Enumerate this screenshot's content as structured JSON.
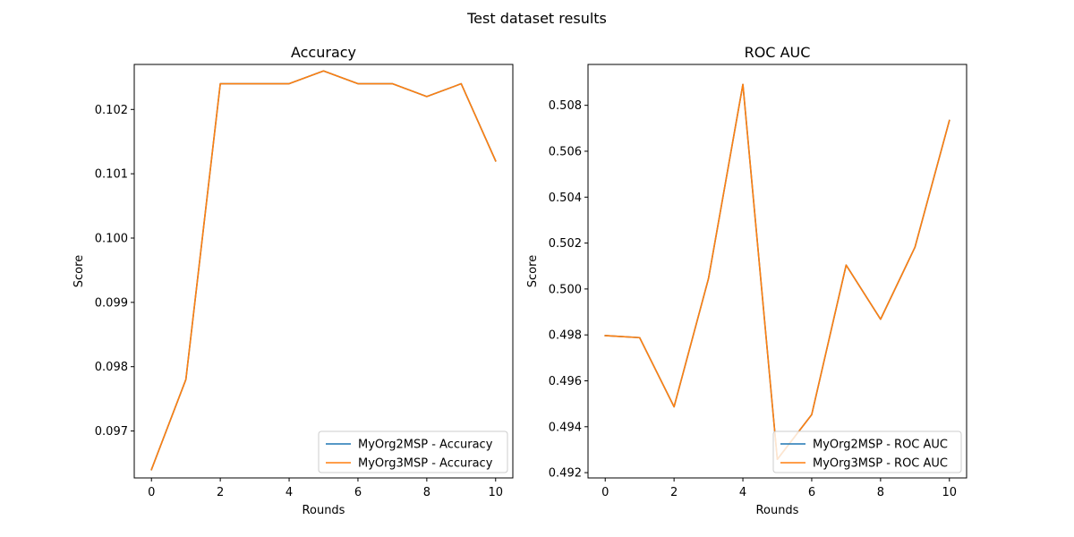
{
  "figure": {
    "suptitle": "Test dataset results"
  },
  "chart_data": [
    {
      "type": "line",
      "title": "Accuracy",
      "xlabel": "Rounds",
      "ylabel": "Score",
      "xlim": [
        -0.5,
        10.5
      ],
      "ylim": [
        0.09627,
        0.1027
      ],
      "xticks": [
        0,
        2,
        4,
        6,
        8,
        10
      ],
      "yticks": [
        0.097,
        0.098,
        0.099,
        0.1,
        0.101,
        0.102
      ],
      "ytick_labels": [
        "0.097",
        "0.098",
        "0.099",
        "0.100",
        "0.101",
        "0.102"
      ],
      "x": [
        0,
        1,
        2,
        3,
        4,
        5,
        6,
        7,
        8,
        9,
        10
      ],
      "series": [
        {
          "name": "MyOrg2MSP - Accuracy",
          "color": "#1f77b4",
          "values": [
            0.0964,
            0.0978,
            0.1024,
            0.1024,
            0.1024,
            0.1026,
            0.1024,
            0.1024,
            0.1022,
            0.1024,
            0.1012
          ]
        },
        {
          "name": "MyOrg3MSP - Accuracy",
          "color": "#ff7f0e",
          "values": [
            0.0964,
            0.0978,
            0.1024,
            0.1024,
            0.1024,
            0.1026,
            0.1024,
            0.1024,
            0.1022,
            0.1024,
            0.1012
          ]
        }
      ],
      "grid": false,
      "legend_position": "lower right"
    },
    {
      "type": "line",
      "title": "ROC AUC",
      "xlabel": "Rounds",
      "ylabel": "Score",
      "xlim": [
        -0.5,
        10.5
      ],
      "ylim": [
        0.49177,
        0.50978
      ],
      "xticks": [
        0,
        2,
        4,
        6,
        8,
        10
      ],
      "yticks": [
        0.492,
        0.494,
        0.496,
        0.498,
        0.5,
        0.502,
        0.504,
        0.506,
        0.508
      ],
      "ytick_labels": [
        "0.492",
        "0.494",
        "0.496",
        "0.498",
        "0.500",
        "0.502",
        "0.504",
        "0.506",
        "0.508"
      ],
      "x": [
        0,
        1,
        2,
        3,
        4,
        5,
        6,
        7,
        8,
        9,
        10
      ],
      "series": [
        {
          "name": "MyOrg2MSP - ROC AUC",
          "color": "#1f77b4",
          "values": [
            0.49797,
            0.49788,
            0.49487,
            0.50045,
            0.50891,
            0.49258,
            0.49453,
            0.50104,
            0.49868,
            0.50182,
            0.50734
          ]
        },
        {
          "name": "MyOrg3MSP - ROC AUC",
          "color": "#ff7f0e",
          "values": [
            0.49797,
            0.49788,
            0.49487,
            0.50045,
            0.50891,
            0.49258,
            0.49453,
            0.50104,
            0.49868,
            0.50182,
            0.50734
          ]
        }
      ],
      "grid": false,
      "legend_position": "lower right"
    }
  ]
}
